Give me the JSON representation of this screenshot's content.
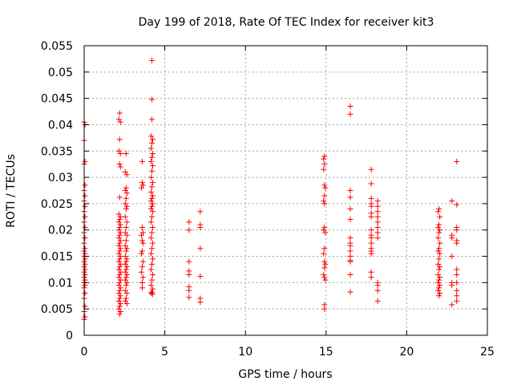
{
  "chart_data": {
    "type": "scatter",
    "title": "Day 199 of 2018, Rate Of TEC Index for receiver kit3",
    "xlabel": "GPS time / hours",
    "ylabel": "ROTI / TECUs",
    "xlim": [
      0,
      25
    ],
    "ylim": [
      0,
      0.055
    ],
    "xticks": [
      0,
      5,
      10,
      15,
      20,
      25
    ],
    "xtick_labels": [
      "0",
      "5",
      "10",
      "15",
      "20",
      "25"
    ],
    "yticks": [
      0,
      0.005,
      0.01,
      0.015,
      0.02,
      0.025,
      0.03,
      0.035,
      0.04,
      0.045,
      0.05,
      0.055
    ],
    "ytick_labels": [
      "0",
      "0.005",
      "0.01",
      "0.015",
      "0.02",
      "0.025",
      "0.03",
      "0.035",
      "0.04",
      "0.045",
      "0.05",
      "0.055"
    ],
    "grid": true,
    "marker": "plus",
    "color": "#ff0000",
    "series": [
      {
        "name": "ROTI",
        "points": [
          [
            0.0,
            0.0405
          ],
          [
            0.05,
            0.04
          ],
          [
            0.0,
            0.037
          ],
          [
            0.05,
            0.033
          ],
          [
            0.0,
            0.0325
          ],
          [
            0.05,
            0.0285
          ],
          [
            0.0,
            0.0275
          ],
          [
            0.05,
            0.0265
          ],
          [
            0.0,
            0.0255
          ],
          [
            0.05,
            0.0245
          ],
          [
            0.0,
            0.0235
          ],
          [
            0.05,
            0.0225
          ],
          [
            0.0,
            0.0215
          ],
          [
            0.05,
            0.0205
          ],
          [
            0.0,
            0.0195
          ],
          [
            0.05,
            0.0185
          ],
          [
            0.0,
            0.0175
          ],
          [
            0.05,
            0.0165
          ],
          [
            0.0,
            0.016
          ],
          [
            0.05,
            0.0155
          ],
          [
            0.0,
            0.015
          ],
          [
            0.05,
            0.0145
          ],
          [
            0.0,
            0.014
          ],
          [
            0.05,
            0.0135
          ],
          [
            0.0,
            0.013
          ],
          [
            0.05,
            0.0125
          ],
          [
            0.0,
            0.012
          ],
          [
            0.05,
            0.0115
          ],
          [
            0.0,
            0.011
          ],
          [
            0.05,
            0.0105
          ],
          [
            0.0,
            0.01
          ],
          [
            0.05,
            0.0095
          ],
          [
            0.0,
            0.009
          ],
          [
            0.05,
            0.008
          ],
          [
            0.0,
            0.007
          ],
          [
            0.05,
            0.0055
          ],
          [
            0.0,
            0.0045
          ],
          [
            0.05,
            0.0035
          ],
          [
            0.0,
            0.003
          ],
          [
            2.2,
            0.0422
          ],
          [
            2.15,
            0.041
          ],
          [
            2.25,
            0.0405
          ],
          [
            2.2,
            0.0372
          ],
          [
            2.15,
            0.035
          ],
          [
            2.25,
            0.0345
          ],
          [
            2.2,
            0.0325
          ],
          [
            2.25,
            0.032
          ],
          [
            2.2,
            0.0262
          ],
          [
            2.15,
            0.023
          ],
          [
            2.25,
            0.0225
          ],
          [
            2.2,
            0.022
          ],
          [
            2.15,
            0.0215
          ],
          [
            2.25,
            0.021
          ],
          [
            2.2,
            0.0205
          ],
          [
            2.15,
            0.02
          ],
          [
            2.25,
            0.0195
          ],
          [
            2.2,
            0.019
          ],
          [
            2.15,
            0.0185
          ],
          [
            2.25,
            0.018
          ],
          [
            2.2,
            0.0175
          ],
          [
            2.15,
            0.017
          ],
          [
            2.25,
            0.0165
          ],
          [
            2.2,
            0.016
          ],
          [
            2.15,
            0.0155
          ],
          [
            2.25,
            0.015
          ],
          [
            2.2,
            0.0145
          ],
          [
            2.15,
            0.014
          ],
          [
            2.25,
            0.0135
          ],
          [
            2.2,
            0.013
          ],
          [
            2.15,
            0.0125
          ],
          [
            2.25,
            0.012
          ],
          [
            2.2,
            0.0115
          ],
          [
            2.15,
            0.011
          ],
          [
            2.25,
            0.0105
          ],
          [
            2.2,
            0.01
          ],
          [
            2.15,
            0.0095
          ],
          [
            2.25,
            0.009
          ],
          [
            2.2,
            0.0085
          ],
          [
            2.15,
            0.008
          ],
          [
            2.25,
            0.0075
          ],
          [
            2.2,
            0.007
          ],
          [
            2.15,
            0.0065
          ],
          [
            2.25,
            0.006
          ],
          [
            2.2,
            0.0055
          ],
          [
            2.15,
            0.005
          ],
          [
            2.25,
            0.0045
          ],
          [
            2.2,
            0.004
          ],
          [
            2.6,
            0.0345
          ],
          [
            2.55,
            0.031
          ],
          [
            2.65,
            0.0305
          ],
          [
            2.6,
            0.028
          ],
          [
            2.55,
            0.0275
          ],
          [
            2.65,
            0.027
          ],
          [
            2.6,
            0.026
          ],
          [
            2.55,
            0.025
          ],
          [
            2.65,
            0.0245
          ],
          [
            2.6,
            0.024
          ],
          [
            2.55,
            0.0225
          ],
          [
            2.65,
            0.0215
          ],
          [
            2.6,
            0.0205
          ],
          [
            2.55,
            0.0195
          ],
          [
            2.65,
            0.019
          ],
          [
            2.6,
            0.018
          ],
          [
            2.55,
            0.017
          ],
          [
            2.65,
            0.0165
          ],
          [
            2.6,
            0.016
          ],
          [
            2.55,
            0.015
          ],
          [
            2.65,
            0.0145
          ],
          [
            2.6,
            0.014
          ],
          [
            2.55,
            0.0135
          ],
          [
            2.65,
            0.013
          ],
          [
            2.6,
            0.0125
          ],
          [
            2.55,
            0.012
          ],
          [
            2.65,
            0.0115
          ],
          [
            2.6,
            0.011
          ],
          [
            2.55,
            0.0105
          ],
          [
            2.65,
            0.01
          ],
          [
            2.6,
            0.0095
          ],
          [
            2.55,
            0.0085
          ],
          [
            2.65,
            0.008
          ],
          [
            2.6,
            0.007
          ],
          [
            2.55,
            0.0065
          ],
          [
            2.65,
            0.006
          ],
          [
            3.6,
            0.033
          ],
          [
            3.6,
            0.029
          ],
          [
            3.65,
            0.0285
          ],
          [
            3.55,
            0.028
          ],
          [
            3.6,
            0.0205
          ],
          [
            3.65,
            0.0195
          ],
          [
            3.55,
            0.019
          ],
          [
            3.6,
            0.018
          ],
          [
            3.65,
            0.0175
          ],
          [
            3.6,
            0.016
          ],
          [
            3.55,
            0.0155
          ],
          [
            3.65,
            0.014
          ],
          [
            3.6,
            0.013
          ],
          [
            3.55,
            0.012
          ],
          [
            3.65,
            0.011
          ],
          [
            3.6,
            0.01
          ],
          [
            3.6,
            0.009
          ],
          [
            4.2,
            0.0522
          ],
          [
            4.2,
            0.0448
          ],
          [
            4.2,
            0.041
          ],
          [
            4.15,
            0.0378
          ],
          [
            4.25,
            0.0372
          ],
          [
            4.2,
            0.0365
          ],
          [
            4.15,
            0.0355
          ],
          [
            4.25,
            0.0345
          ],
          [
            4.2,
            0.0338
          ],
          [
            4.15,
            0.033
          ],
          [
            4.25,
            0.0322
          ],
          [
            4.2,
            0.0312
          ],
          [
            4.15,
            0.03
          ],
          [
            4.25,
            0.029
          ],
          [
            4.2,
            0.0282
          ],
          [
            4.15,
            0.0272
          ],
          [
            4.25,
            0.0265
          ],
          [
            4.2,
            0.026
          ],
          [
            4.15,
            0.0255
          ],
          [
            4.25,
            0.025
          ],
          [
            4.2,
            0.0245
          ],
          [
            4.15,
            0.024
          ],
          [
            4.25,
            0.0235
          ],
          [
            4.2,
            0.0225
          ],
          [
            4.15,
            0.0215
          ],
          [
            4.25,
            0.0205
          ],
          [
            4.2,
            0.0195
          ],
          [
            4.15,
            0.0185
          ],
          [
            4.25,
            0.0175
          ],
          [
            4.2,
            0.0165
          ],
          [
            4.15,
            0.0155
          ],
          [
            4.25,
            0.0145
          ],
          [
            4.2,
            0.0135
          ],
          [
            4.15,
            0.0125
          ],
          [
            4.25,
            0.0115
          ],
          [
            4.2,
            0.0105
          ],
          [
            4.15,
            0.0095
          ],
          [
            4.25,
            0.0088
          ],
          [
            4.2,
            0.0082
          ],
          [
            4.15,
            0.008
          ],
          [
            4.25,
            0.0078
          ],
          [
            6.5,
            0.0215
          ],
          [
            6.5,
            0.02
          ],
          [
            6.5,
            0.014
          ],
          [
            6.5,
            0.0122
          ],
          [
            6.5,
            0.0115
          ],
          [
            6.5,
            0.0092
          ],
          [
            6.5,
            0.0085
          ],
          [
            6.5,
            0.0072
          ],
          [
            7.2,
            0.0235
          ],
          [
            7.2,
            0.021
          ],
          [
            7.2,
            0.0205
          ],
          [
            7.2,
            0.0165
          ],
          [
            7.2,
            0.0112
          ],
          [
            7.2,
            0.007
          ],
          [
            7.2,
            0.0063
          ],
          [
            14.9,
            0.034
          ],
          [
            14.85,
            0.0335
          ],
          [
            14.9,
            0.0325
          ],
          [
            14.85,
            0.0315
          ],
          [
            14.9,
            0.0285
          ],
          [
            14.95,
            0.028
          ],
          [
            14.9,
            0.0265
          ],
          [
            14.85,
            0.0255
          ],
          [
            14.9,
            0.025
          ],
          [
            14.9,
            0.0205
          ],
          [
            14.85,
            0.02
          ],
          [
            14.95,
            0.0195
          ],
          [
            14.9,
            0.0165
          ],
          [
            14.85,
            0.0155
          ],
          [
            14.9,
            0.014
          ],
          [
            14.95,
            0.0135
          ],
          [
            14.9,
            0.0128
          ],
          [
            14.85,
            0.0115
          ],
          [
            14.9,
            0.011
          ],
          [
            14.95,
            0.0105
          ],
          [
            14.9,
            0.0058
          ],
          [
            14.9,
            0.005
          ],
          [
            16.5,
            0.0435
          ],
          [
            16.5,
            0.042
          ],
          [
            16.5,
            0.0275
          ],
          [
            16.5,
            0.0262
          ],
          [
            16.5,
            0.024
          ],
          [
            16.5,
            0.022
          ],
          [
            16.5,
            0.0185
          ],
          [
            16.5,
            0.0175
          ],
          [
            16.5,
            0.017
          ],
          [
            16.5,
            0.016
          ],
          [
            16.5,
            0.015
          ],
          [
            16.5,
            0.0142
          ],
          [
            16.5,
            0.014
          ],
          [
            16.5,
            0.0115
          ],
          [
            16.5,
            0.0082
          ],
          [
            17.8,
            0.0315
          ],
          [
            17.8,
            0.0288
          ],
          [
            17.8,
            0.026
          ],
          [
            17.8,
            0.025
          ],
          [
            17.8,
            0.0245
          ],
          [
            17.8,
            0.0232
          ],
          [
            17.8,
            0.0225
          ],
          [
            17.8,
            0.02
          ],
          [
            17.8,
            0.019
          ],
          [
            17.8,
            0.0185
          ],
          [
            17.8,
            0.0175
          ],
          [
            17.8,
            0.0165
          ],
          [
            17.8,
            0.016
          ],
          [
            17.8,
            0.0155
          ],
          [
            17.8,
            0.012
          ],
          [
            17.8,
            0.011
          ],
          [
            18.2,
            0.0255
          ],
          [
            18.2,
            0.0245
          ],
          [
            18.2,
            0.0235
          ],
          [
            18.2,
            0.0225
          ],
          [
            18.2,
            0.0215
          ],
          [
            18.2,
            0.0205
          ],
          [
            18.2,
            0.0195
          ],
          [
            18.2,
            0.0185
          ],
          [
            18.2,
            0.01
          ],
          [
            18.2,
            0.0095
          ],
          [
            18.2,
            0.0085
          ],
          [
            18.2,
            0.0065
          ],
          [
            22.0,
            0.024
          ],
          [
            21.95,
            0.0235
          ],
          [
            22.05,
            0.0225
          ],
          [
            22.0,
            0.021
          ],
          [
            21.95,
            0.0205
          ],
          [
            22.05,
            0.02
          ],
          [
            22.0,
            0.0195
          ],
          [
            21.95,
            0.0185
          ],
          [
            22.05,
            0.0175
          ],
          [
            22.0,
            0.0165
          ],
          [
            21.95,
            0.016
          ],
          [
            22.05,
            0.0155
          ],
          [
            22.0,
            0.0145
          ],
          [
            21.95,
            0.0135
          ],
          [
            22.05,
            0.013
          ],
          [
            22.0,
            0.0125
          ],
          [
            21.95,
            0.0115
          ],
          [
            22.05,
            0.011
          ],
          [
            22.0,
            0.0105
          ],
          [
            21.95,
            0.01
          ],
          [
            22.05,
            0.0095
          ],
          [
            22.0,
            0.009
          ],
          [
            21.95,
            0.0085
          ],
          [
            22.05,
            0.008
          ],
          [
            22.0,
            0.0075
          ],
          [
            22.8,
            0.0255
          ],
          [
            22.8,
            0.019
          ],
          [
            22.8,
            0.0185
          ],
          [
            22.8,
            0.015
          ],
          [
            22.8,
            0.01
          ],
          [
            22.8,
            0.0095
          ],
          [
            22.8,
            0.0058
          ],
          [
            23.1,
            0.033
          ],
          [
            23.1,
            0.0248
          ],
          [
            23.1,
            0.0205
          ],
          [
            23.1,
            0.02
          ],
          [
            23.1,
            0.018
          ],
          [
            23.1,
            0.0175
          ],
          [
            23.1,
            0.0125
          ],
          [
            23.1,
            0.0115
          ],
          [
            23.1,
            0.01
          ],
          [
            23.1,
            0.0085
          ],
          [
            23.1,
            0.0075
          ],
          [
            23.1,
            0.0065
          ]
        ]
      }
    ]
  }
}
